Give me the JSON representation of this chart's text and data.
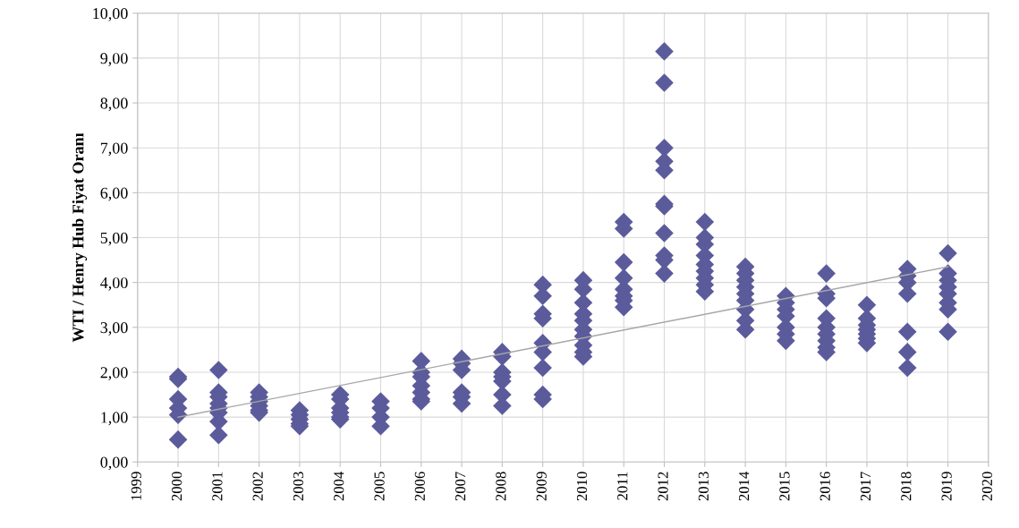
{
  "chart_data": {
    "type": "scatter",
    "ylabel": "WTI / Henry Hub Fiyat Oranı",
    "xlim": [
      1999,
      2020
    ],
    "xticks": [
      1999,
      2000,
      2001,
      2002,
      2003,
      2004,
      2005,
      2006,
      2007,
      2008,
      2009,
      2010,
      2011,
      2012,
      2013,
      2014,
      2015,
      2016,
      2017,
      2018,
      2019,
      2020
    ],
    "ylim": [
      0,
      10
    ],
    "yticks": [
      {
        "value": 0,
        "label": "0,00"
      },
      {
        "value": 1,
        "label": "1,00"
      },
      {
        "value": 2,
        "label": "2,00"
      },
      {
        "value": 3,
        "label": "3,00"
      },
      {
        "value": 4,
        "label": "4,00"
      },
      {
        "value": 5,
        "label": "5,00"
      },
      {
        "value": 6,
        "label": "6,00"
      },
      {
        "value": 7,
        "label": "7,00"
      },
      {
        "value": 8,
        "label": "8,00"
      },
      {
        "value": 9,
        "label": "9,00"
      },
      {
        "value": 10,
        "label": "10,00"
      }
    ],
    "grid": true,
    "marker": "diamond",
    "series": [
      {
        "color": "#5b5b9c",
        "x": [
          2000,
          2000,
          2000,
          2000,
          2000,
          2000,
          2001,
          2001,
          2001,
          2001,
          2001,
          2001,
          2001,
          2001,
          2002,
          2002,
          2002,
          2002,
          2002,
          2002,
          2003,
          2003,
          2003,
          2003,
          2003,
          2004,
          2004,
          2004,
          2004,
          2004,
          2004,
          2005,
          2005,
          2005,
          2005,
          2006,
          2006,
          2006,
          2006,
          2006,
          2006,
          2006,
          2007,
          2007,
          2007,
          2007,
          2007,
          2007,
          2008,
          2008,
          2008,
          2008,
          2008,
          2008,
          2008,
          2009,
          2009,
          2009,
          2009,
          2009,
          2009,
          2009,
          2009,
          2009,
          2010,
          2010,
          2010,
          2010,
          2010,
          2010,
          2010,
          2010,
          2010,
          2010,
          2011,
          2011,
          2011,
          2011,
          2011,
          2011,
          2011,
          2011,
          2012,
          2012,
          2012,
          2012,
          2012,
          2012,
          2012,
          2012,
          2012,
          2012,
          2012,
          2013,
          2013,
          2013,
          2013,
          2013,
          2013,
          2013,
          2013,
          2013,
          2014,
          2014,
          2014,
          2014,
          2014,
          2014,
          2014,
          2014,
          2014,
          2015,
          2015,
          2015,
          2015,
          2015,
          2015,
          2015,
          2016,
          2016,
          2016,
          2016,
          2016,
          2016,
          2016,
          2016,
          2016,
          2017,
          2017,
          2017,
          2017,
          2017,
          2017,
          2017,
          2018,
          2018,
          2018,
          2018,
          2018,
          2018,
          2018,
          2019,
          2019,
          2019,
          2019,
          2019,
          2019,
          2019,
          2019
        ],
        "values": [
          1.9,
          1.85,
          1.4,
          1.2,
          1.05,
          0.5,
          2.05,
          1.55,
          1.45,
          1.3,
          1.2,
          1.1,
          0.9,
          0.6,
          1.55,
          1.45,
          1.35,
          1.25,
          1.15,
          1.1,
          1.15,
          1.05,
          0.95,
          0.85,
          0.8,
          1.5,
          1.4,
          1.2,
          1.1,
          1.0,
          0.95,
          1.35,
          1.2,
          1.0,
          0.8,
          2.25,
          2.0,
          1.9,
          1.7,
          1.55,
          1.4,
          1.35,
          2.3,
          2.2,
          2.05,
          1.55,
          1.45,
          1.3,
          2.45,
          2.35,
          2.0,
          1.9,
          1.8,
          1.5,
          1.25,
          3.95,
          3.7,
          3.3,
          3.2,
          2.65,
          2.45,
          2.1,
          1.5,
          1.4,
          4.05,
          3.85,
          3.55,
          3.3,
          3.15,
          2.95,
          2.8,
          2.6,
          2.45,
          2.35,
          5.35,
          5.2,
          4.45,
          4.1,
          3.85,
          3.7,
          3.6,
          3.45,
          9.15,
          8.45,
          7.0,
          6.7,
          6.5,
          5.75,
          5.7,
          5.1,
          4.6,
          4.5,
          4.2,
          5.35,
          5.0,
          4.85,
          4.6,
          4.4,
          4.25,
          4.1,
          3.95,
          3.8,
          4.35,
          4.2,
          4.05,
          3.9,
          3.75,
          3.6,
          3.4,
          3.15,
          2.95,
          3.7,
          3.55,
          3.4,
          3.25,
          3.0,
          2.85,
          2.7,
          4.2,
          3.75,
          3.65,
          3.2,
          3.0,
          2.85,
          2.7,
          2.55,
          2.45,
          3.5,
          3.2,
          3.05,
          2.95,
          2.85,
          2.75,
          2.65,
          4.3,
          4.15,
          4.0,
          3.75,
          2.9,
          2.45,
          2.1,
          4.65,
          4.2,
          4.05,
          3.9,
          3.75,
          3.55,
          3.4,
          2.9
        ]
      },
      {
        "type": "line",
        "color": "#a6a6a6",
        "marker": "none",
        "x": [
          2000,
          2019
        ],
        "values": [
          1.0,
          4.35
        ]
      }
    ]
  }
}
